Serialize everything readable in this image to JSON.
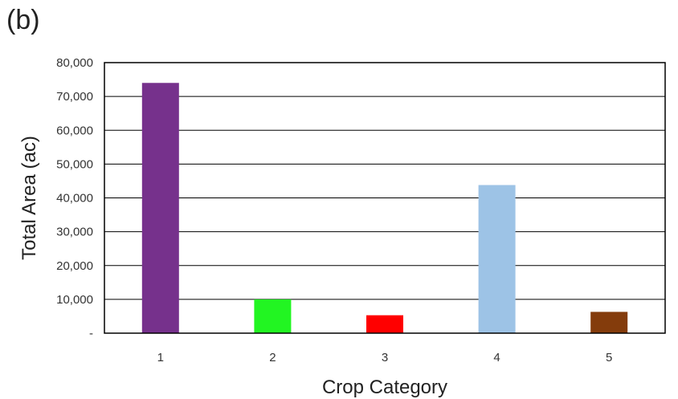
{
  "panel_label": "(b)",
  "chart_data": {
    "type": "bar",
    "title": "",
    "xlabel": "Crop Category",
    "ylabel": "Total Area (ac)",
    "categories": [
      "1",
      "2",
      "3",
      "4",
      "5"
    ],
    "values": [
      74000,
      10000,
      5300,
      43800,
      6300
    ],
    "colors": [
      "#76318c",
      "#22f522",
      "#ff0000",
      "#9dc3e6",
      "#843c0c"
    ],
    "ylim": [
      0,
      80000
    ],
    "yticks": [
      {
        "value": 0,
        "label": "-"
      },
      {
        "value": 10000,
        "label": "10,000"
      },
      {
        "value": 20000,
        "label": "20,000"
      },
      {
        "value": 30000,
        "label": "30,000"
      },
      {
        "value": 40000,
        "label": "40,000"
      },
      {
        "value": 50000,
        "label": "50,000"
      },
      {
        "value": 60000,
        "label": "60,000"
      },
      {
        "value": 70000,
        "label": "70,000"
      },
      {
        "value": 80000,
        "label": "80,000"
      }
    ],
    "grid": true,
    "legend": "none"
  }
}
